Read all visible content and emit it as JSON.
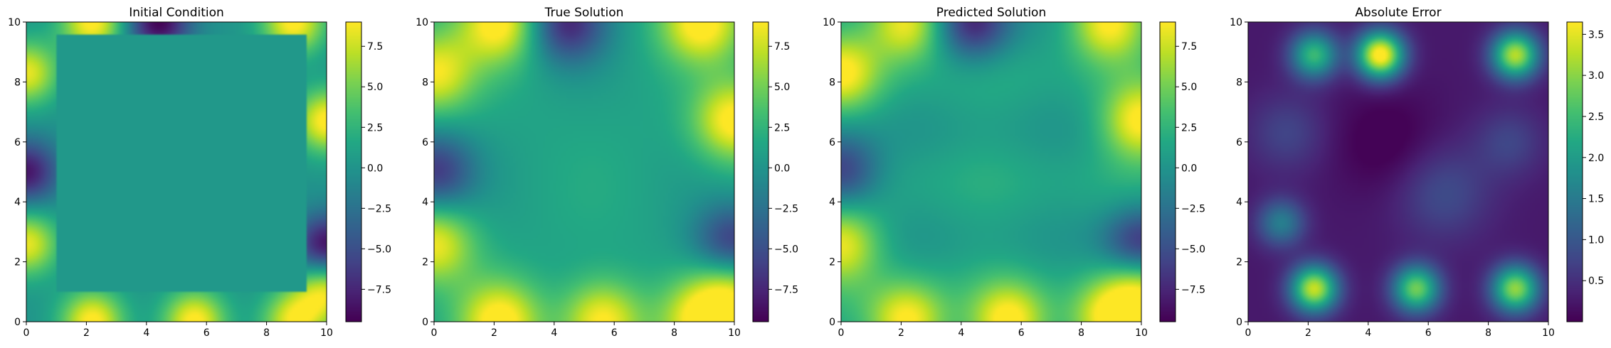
{
  "chart_data": [
    {
      "type": "heatmap",
      "title": "Initial Condition",
      "xlim": [
        0,
        10
      ],
      "ylim": [
        0,
        10
      ],
      "xticks": [
        "0",
        "2",
        "4",
        "6",
        "8",
        "10"
      ],
      "yticks": [
        "0",
        "2",
        "4",
        "6",
        "8",
        "10"
      ],
      "colormap": "viridis",
      "colorbar": {
        "range": [
          -9.5,
          9.0
        ],
        "ticks": [
          "7.5",
          "5.0",
          "2.5",
          "0.0",
          "−2.5",
          "−5.0",
          "−7.5"
        ],
        "tick_values": [
          7.5,
          5.0,
          2.5,
          0.0,
          -2.5,
          -5.0,
          -7.5
        ]
      },
      "field": "initial",
      "boundary_sources": {
        "top": [
          {
            "pos": 2.2,
            "value": 9
          },
          {
            "pos": 4.4,
            "value": -9
          },
          {
            "pos": 8.9,
            "value": 9
          }
        ],
        "bottom": [
          {
            "pos": 2.2,
            "value": 9
          },
          {
            "pos": 5.6,
            "value": 9
          },
          {
            "pos": 8.9,
            "value": 8
          }
        ],
        "left": [
          {
            "pos": 8.3,
            "value": 8
          },
          {
            "pos": 5.0,
            "value": -8
          },
          {
            "pos": 2.6,
            "value": 8
          }
        ],
        "right": [
          {
            "pos": 6.7,
            "value": 9
          },
          {
            "pos": 2.5,
            "value": -9
          },
          {
            "pos": 1.1,
            "value": 8
          }
        ]
      }
    },
    {
      "type": "heatmap",
      "title": "True Solution",
      "xlim": [
        0,
        10
      ],
      "ylim": [
        0,
        10
      ],
      "xticks": [
        "0",
        "2",
        "4",
        "6",
        "8",
        "10"
      ],
      "yticks": [
        "0",
        "2",
        "4",
        "6",
        "8",
        "10"
      ],
      "colormap": "viridis",
      "colorbar": {
        "range": [
          -9.5,
          9.0
        ],
        "ticks": [
          "7.5",
          "5.0",
          "2.5",
          "0.0",
          "−2.5",
          "−5.0",
          "−7.5"
        ],
        "tick_values": [
          7.5,
          5.0,
          2.5,
          0.0,
          -2.5,
          -5.0,
          -7.5
        ]
      },
      "field": "true"
    },
    {
      "type": "heatmap",
      "title": "Predicted Solution",
      "xlim": [
        0,
        10
      ],
      "ylim": [
        0,
        10
      ],
      "xticks": [
        "0",
        "2",
        "4",
        "6",
        "8",
        "10"
      ],
      "yticks": [
        "0",
        "2",
        "4",
        "6",
        "8",
        "10"
      ],
      "colormap": "viridis",
      "colorbar": {
        "range": [
          -9.5,
          9.0
        ],
        "ticks": [
          "7.5",
          "5.0",
          "2.5",
          "0.0",
          "−2.5",
          "−5.0",
          "−7.5"
        ],
        "tick_values": [
          7.5,
          5.0,
          2.5,
          0.0,
          -2.5,
          -5.0,
          -7.5
        ]
      },
      "field": "predicted"
    },
    {
      "type": "heatmap",
      "title": "Absolute Error",
      "xlim": [
        0,
        10
      ],
      "ylim": [
        0,
        10
      ],
      "xticks": [
        "0",
        "2",
        "4",
        "6",
        "8",
        "10"
      ],
      "yticks": [
        "0",
        "2",
        "4",
        "6",
        "8",
        "10"
      ],
      "colormap": "viridis",
      "colorbar": {
        "range": [
          0.0,
          3.65
        ],
        "ticks": [
          "3.5",
          "3.0",
          "2.5",
          "2.0",
          "1.5",
          "1.0",
          "0.5"
        ],
        "tick_values": [
          3.5,
          3.0,
          2.5,
          2.0,
          1.5,
          1.0,
          0.5
        ]
      },
      "field": "error",
      "hotspots": [
        {
          "x": 4.4,
          "y": 8.9,
          "value": 3.6
        },
        {
          "x": 8.9,
          "y": 8.9,
          "value": 3.0
        },
        {
          "x": 2.2,
          "y": 8.9,
          "value": 2.2
        },
        {
          "x": 2.2,
          "y": 1.1,
          "value": 3.1
        },
        {
          "x": 5.6,
          "y": 1.1,
          "value": 2.6
        },
        {
          "x": 8.9,
          "y": 1.1,
          "value": 2.8
        },
        {
          "x": 1.1,
          "y": 3.3,
          "value": 1.3
        }
      ]
    }
  ]
}
